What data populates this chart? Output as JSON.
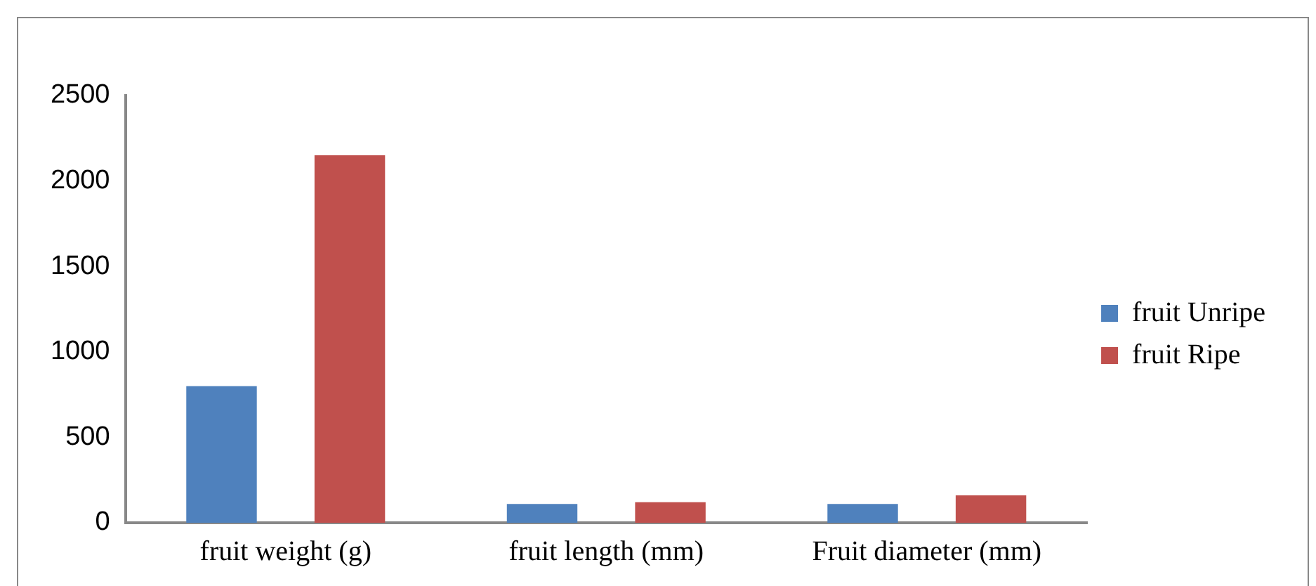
{
  "chart_data": {
    "type": "bar",
    "categories": [
      "fruit weight (g)",
      "fruit length (mm)",
      "Fruit diameter (mm)"
    ],
    "series": [
      {
        "name": "fruit Unripe",
        "color": "#4f81bd",
        "values": [
          800,
          110,
          110
        ]
      },
      {
        "name": "fruit Ripe",
        "color": "#c0504d",
        "values": [
          2150,
          120,
          160
        ]
      }
    ],
    "ylim": [
      0,
      2500
    ],
    "yticks": [
      0,
      500,
      1000,
      1500,
      2000,
      2500
    ],
    "grid": false,
    "legend": "right"
  }
}
